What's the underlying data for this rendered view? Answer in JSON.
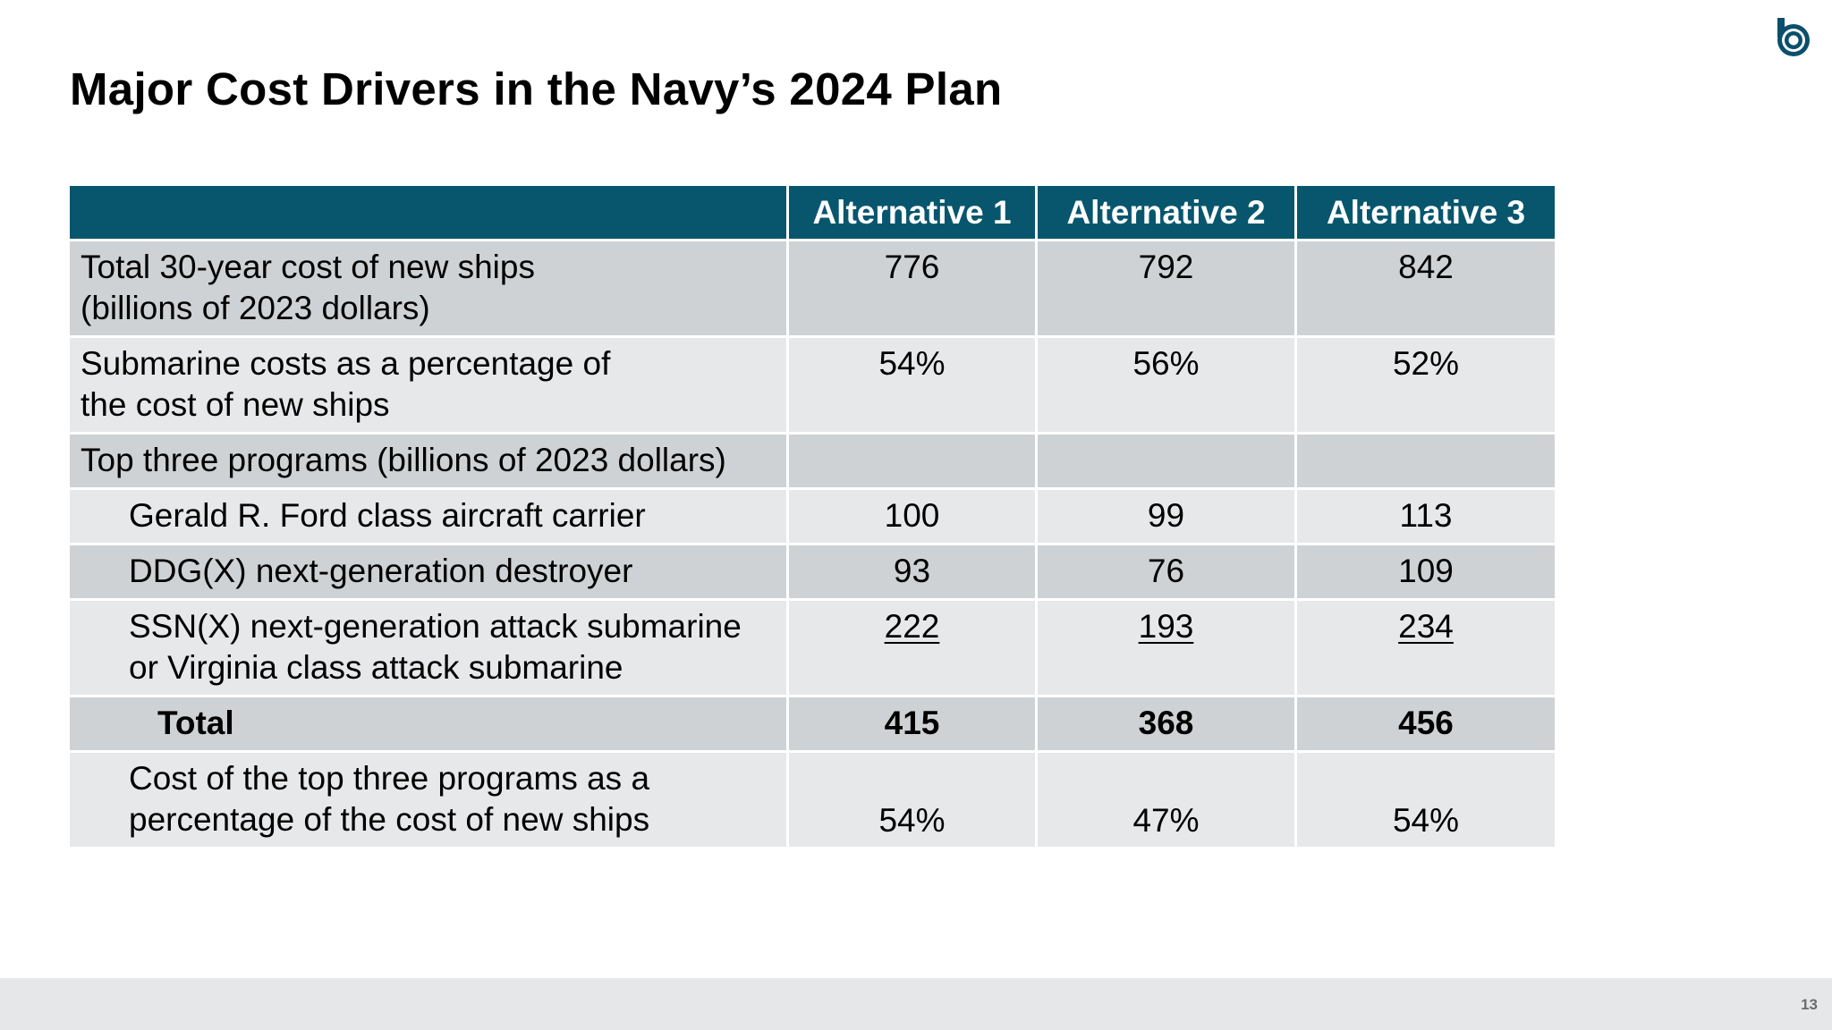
{
  "title": "Major Cost Drivers in the Navy’s 2024 Plan",
  "table": {
    "headers": [
      "",
      "Alternative 1",
      "Alternative 2",
      "Alternative 3"
    ],
    "rows": [
      {
        "label_line1": "Total 30-year cost of new ships",
        "label_line2": "(billions of 2023 dollars)",
        "values": [
          "776",
          "792",
          "842"
        ]
      },
      {
        "label_line1": "Submarine costs as a percentage of",
        "label_line2": "the cost of new ships",
        "values": [
          "54%",
          "56%",
          "52%"
        ]
      },
      {
        "label": "Top three programs (billions of 2023 dollars)",
        "values": [
          "",
          "",
          ""
        ]
      },
      {
        "label": "Gerald R. Ford class aircraft carrier",
        "values": [
          "100",
          "99",
          "113"
        ]
      },
      {
        "label": "DDG(X) next-generation destroyer",
        "values": [
          "93",
          "76",
          "109"
        ]
      },
      {
        "label_line1": "SSN(X) next-generation attack submarine",
        "label_line2": "or Virginia class attack submarine",
        "values": [
          "222",
          "193",
          "234"
        ]
      },
      {
        "label": "Total",
        "values": [
          "415",
          "368",
          "456"
        ]
      },
      {
        "label_line1": "Cost of the top three programs as a",
        "label_line2": "percentage of the cost of new ships",
        "values": [
          "54%",
          "47%",
          "54%"
        ]
      }
    ]
  },
  "footer": {
    "page_number": "13"
  },
  "logo": {
    "icon": "cbo-logo-icon",
    "color": "#0b4f6c"
  },
  "colors": {
    "header_bg": "#07566e",
    "row_dark": "#cfd2d4",
    "row_light": "#e7e8e9"
  }
}
